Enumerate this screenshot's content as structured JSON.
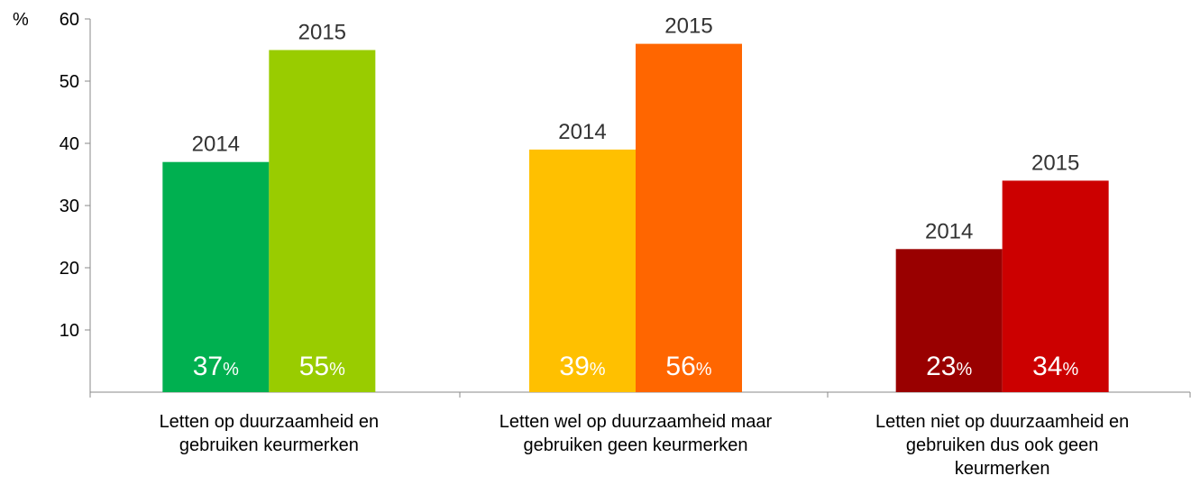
{
  "chart_data": {
    "type": "bar",
    "y_axis_label": "%",
    "categories": [
      "Letten op duurzaamheid en\ngebruiken keurmerken",
      "Letten wel op duurzaamheid maar\ngebruiken geen keurmerken",
      "Letten niet op duurzaamheid en\ngebruiken dus ook geen\nkeurmerken"
    ],
    "series": [
      {
        "name": "2014",
        "colors": [
          "#00b050",
          "#ffc000",
          "#990000"
        ],
        "values": [
          37,
          39,
          23
        ],
        "value_labels": [
          "37%",
          "39%",
          "23%"
        ]
      },
      {
        "name": "2015",
        "colors": [
          "#99cc00",
          "#ff6600",
          "#cc0000"
        ],
        "values": [
          55,
          56,
          34
        ],
        "value_labels": [
          "55%",
          "56%",
          "34%"
        ]
      }
    ],
    "ylim": [
      0,
      60
    ],
    "yticks": [
      10,
      20,
      30,
      40,
      50,
      60
    ]
  }
}
